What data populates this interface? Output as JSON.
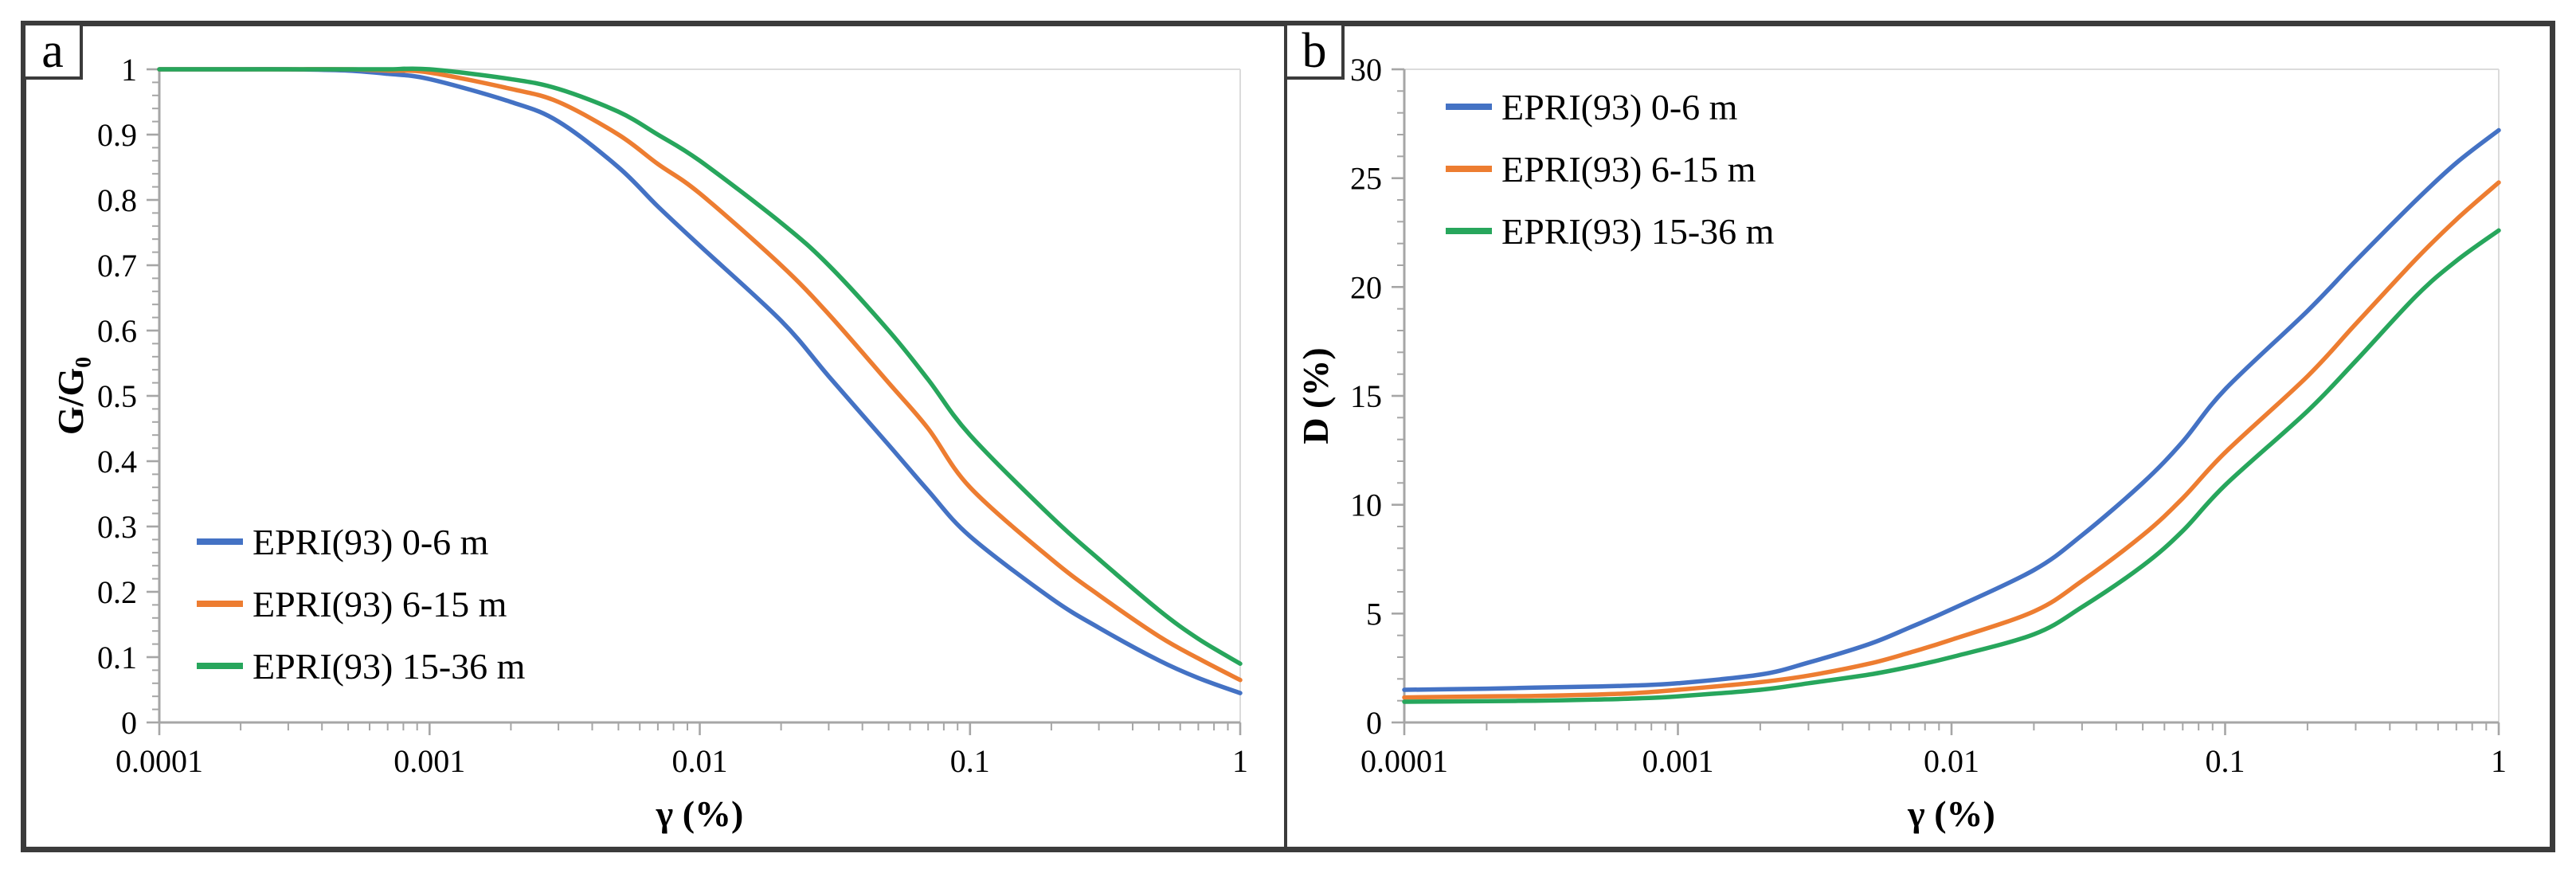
{
  "figure": {
    "panels": [
      {
        "label": "a"
      },
      {
        "label": "b"
      }
    ]
  },
  "chart_data": [
    {
      "type": "line",
      "panel_label": "a",
      "title": "",
      "xlabel": "γ (%)",
      "ylabel": "G/G₀",
      "x_scale": "log",
      "xlim": [
        0.0001,
        1
      ],
      "ylim": [
        0,
        1
      ],
      "x_major_ticks": [
        0.0001,
        0.001,
        0.01,
        0.1,
        1
      ],
      "x_tick_labels": [
        "0.0001",
        "0.001",
        "0.01",
        "0.1",
        "1"
      ],
      "y_tick_labels": [
        "0",
        "0.1",
        "0.2",
        "0.3",
        "0.4",
        "0.5",
        "0.6",
        "0.7",
        "0.8",
        "0.9",
        "1"
      ],
      "y_minor_step": 0.02,
      "grid": false,
      "legend_position": "lower-left",
      "x": [
        0.0001,
        0.0002,
        0.0003,
        0.0005,
        0.0007,
        0.001,
        0.002,
        0.003,
        0.005,
        0.007,
        0.01,
        0.02,
        0.03,
        0.05,
        0.07,
        0.1,
        0.2,
        0.3,
        0.5,
        0.7,
        1
      ],
      "series": [
        {
          "name": "EPRI(93) 0-6 m",
          "color": "#4472C4",
          "values": [
            1,
            1,
            1,
            0.998,
            0.993,
            0.985,
            0.95,
            0.92,
            0.85,
            0.79,
            0.73,
            0.615,
            0.53,
            0.425,
            0.355,
            0.285,
            0.19,
            0.145,
            0.095,
            0.068,
            0.045
          ]
        },
        {
          "name": "EPRI(93) 6-15 m",
          "color": "#ED7D31",
          "values": [
            1,
            1,
            1,
            1,
            0.998,
            0.995,
            0.97,
            0.95,
            0.9,
            0.855,
            0.81,
            0.7,
            0.625,
            0.52,
            0.45,
            0.36,
            0.25,
            0.195,
            0.132,
            0.098,
            0.065
          ]
        },
        {
          "name": "EPRI(93) 15-36 m",
          "color": "#27A65C",
          "values": [
            1,
            1,
            1,
            1,
            1,
            1,
            0.985,
            0.97,
            0.935,
            0.9,
            0.86,
            0.765,
            0.7,
            0.6,
            0.525,
            0.44,
            0.315,
            0.25,
            0.172,
            0.128,
            0.09
          ]
        }
      ]
    },
    {
      "type": "line",
      "panel_label": "b",
      "title": "",
      "xlabel": "γ (%)",
      "ylabel": "D (%)",
      "x_scale": "log",
      "xlim": [
        0.0001,
        1
      ],
      "ylim": [
        0,
        30
      ],
      "x_major_ticks": [
        0.0001,
        0.001,
        0.01,
        0.1,
        1
      ],
      "x_tick_labels": [
        "0.0001",
        "0.001",
        "0.01",
        "0.1",
        "1"
      ],
      "y_tick_labels": [
        "0",
        "5",
        "10",
        "15",
        "20",
        "25",
        "30"
      ],
      "y_minor_step": 1,
      "grid": false,
      "legend_position": "upper-left",
      "x": [
        0.0001,
        0.0002,
        0.0003,
        0.0005,
        0.0007,
        0.001,
        0.002,
        0.003,
        0.005,
        0.007,
        0.01,
        0.02,
        0.03,
        0.05,
        0.07,
        0.1,
        0.2,
        0.3,
        0.5,
        0.7,
        1
      ],
      "series": [
        {
          "name": "EPRI(93) 0-6 m",
          "color": "#4472C4",
          "values": [
            1.5,
            1.55,
            1.6,
            1.65,
            1.7,
            1.8,
            2.2,
            2.75,
            3.6,
            4.35,
            5.2,
            7.0,
            8.6,
            11.0,
            12.9,
            15.3,
            18.9,
            21.2,
            24.0,
            25.7,
            27.2
          ]
        },
        {
          "name": "EPRI(93) 6-15 m",
          "color": "#ED7D31",
          "values": [
            1.15,
            1.2,
            1.22,
            1.28,
            1.35,
            1.5,
            1.85,
            2.15,
            2.7,
            3.2,
            3.8,
            5.1,
            6.5,
            8.6,
            10.3,
            12.4,
            15.9,
            18.3,
            21.3,
            23.1,
            24.8
          ]
        },
        {
          "name": "EPRI(93) 15-36 m",
          "color": "#27A65C",
          "values": [
            0.95,
            0.98,
            1.0,
            1.05,
            1.1,
            1.2,
            1.5,
            1.8,
            2.2,
            2.55,
            3.0,
            4.05,
            5.3,
            7.2,
            8.8,
            10.9,
            14.3,
            16.6,
            19.6,
            21.2,
            22.6
          ]
        }
      ]
    }
  ]
}
